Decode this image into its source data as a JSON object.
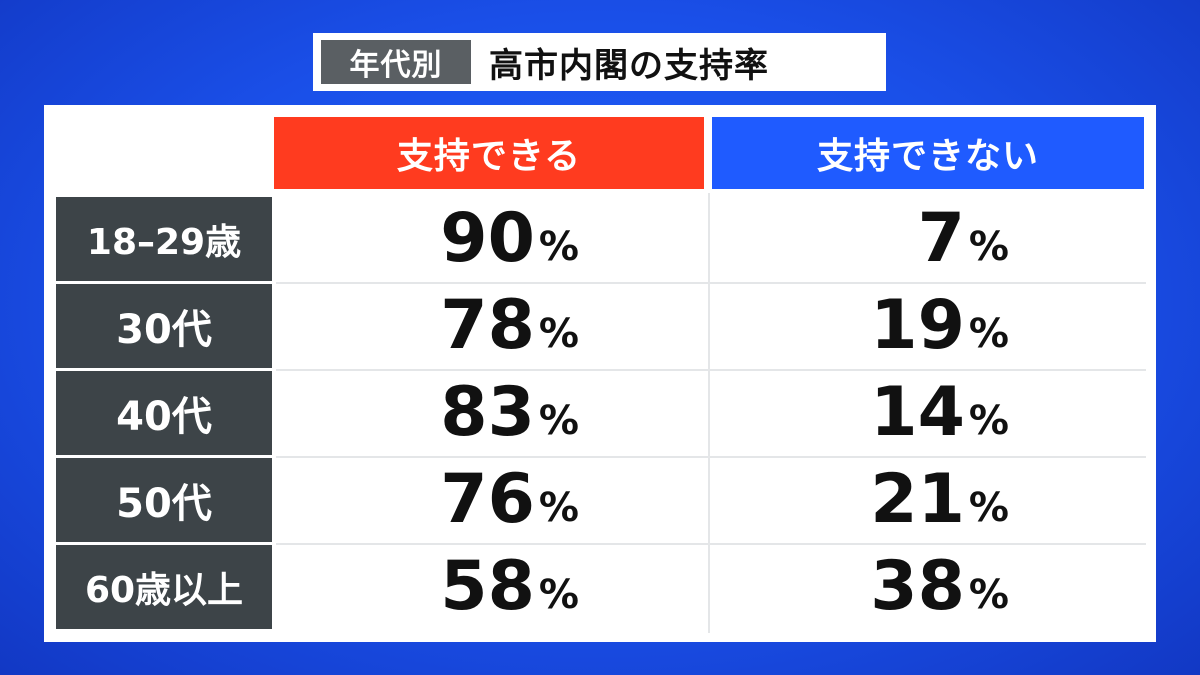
{
  "title": {
    "tag": "年代別",
    "main": "高市内閣の支持率"
  },
  "colors": {
    "background": "#1a4fe8",
    "support_header": "#ff3b1f",
    "nosupport_header": "#1f5bff",
    "row_label_bg": "#3d4448"
  },
  "chart_data": {
    "type": "table",
    "title": "高市内閣の支持率",
    "subtitle": "年代別",
    "columns": [
      "支持できる",
      "支持できない"
    ],
    "unit": "%",
    "rows": [
      {
        "label": "18–29歳",
        "support": "90",
        "nosupport": "7"
      },
      {
        "label": "30代",
        "support": "78",
        "nosupport": "19"
      },
      {
        "label": "40代",
        "support": "83",
        "nosupport": "14"
      },
      {
        "label": "50代",
        "support": "76",
        "nosupport": "21"
      },
      {
        "label": "60歳以上",
        "support": "58",
        "nosupport": "38"
      }
    ]
  }
}
